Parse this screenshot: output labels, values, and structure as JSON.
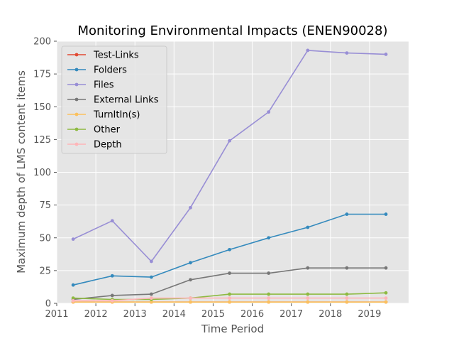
{
  "chart_data": {
    "type": "line",
    "title": "Monitoring Environmental Impacts (ENEN90028)",
    "xlabel": "Time Period",
    "ylabel": "Maximum depth of LMS content items",
    "xlim": [
      2011,
      2020
    ],
    "ylim": [
      0,
      200
    ],
    "xticks": [
      2011,
      2012,
      2013,
      2014,
      2015,
      2016,
      2017,
      2018,
      2019
    ],
    "yticks": [
      0,
      25,
      50,
      75,
      100,
      125,
      150,
      175,
      200
    ],
    "grid": true,
    "legend_position": "upper-left",
    "x": [
      2011.42,
      2012.42,
      2013.42,
      2014.42,
      2015.42,
      2016.42,
      2017.42,
      2018.42,
      2019.42
    ],
    "series": [
      {
        "name": "Test-Links",
        "color": "#e24a33",
        "values": [
          1,
          1,
          1,
          1,
          1,
          1,
          1,
          1,
          1
        ]
      },
      {
        "name": "Folders",
        "color": "#348abd",
        "values": [
          14,
          21,
          20,
          31,
          41,
          50,
          58,
          68,
          68
        ]
      },
      {
        "name": "Files",
        "color": "#988ed5",
        "values": [
          49,
          63,
          32,
          73,
          124,
          146,
          193,
          191,
          190
        ]
      },
      {
        "name": "External Links",
        "color": "#777777",
        "values": [
          3,
          6,
          7,
          18,
          23,
          23,
          27,
          27,
          27
        ]
      },
      {
        "name": "TurnItIn(s)",
        "color": "#fbc15e",
        "values": [
          1,
          1,
          1,
          1,
          1,
          1,
          1,
          1,
          1
        ]
      },
      {
        "name": "Other",
        "color": "#8eba42",
        "values": [
          4,
          3,
          3,
          4,
          7,
          7,
          7,
          7,
          8
        ]
      },
      {
        "name": "Depth",
        "color": "#ffb5b8",
        "values": [
          2,
          2,
          4,
          4,
          4,
          4,
          4,
          4,
          4
        ]
      }
    ]
  }
}
